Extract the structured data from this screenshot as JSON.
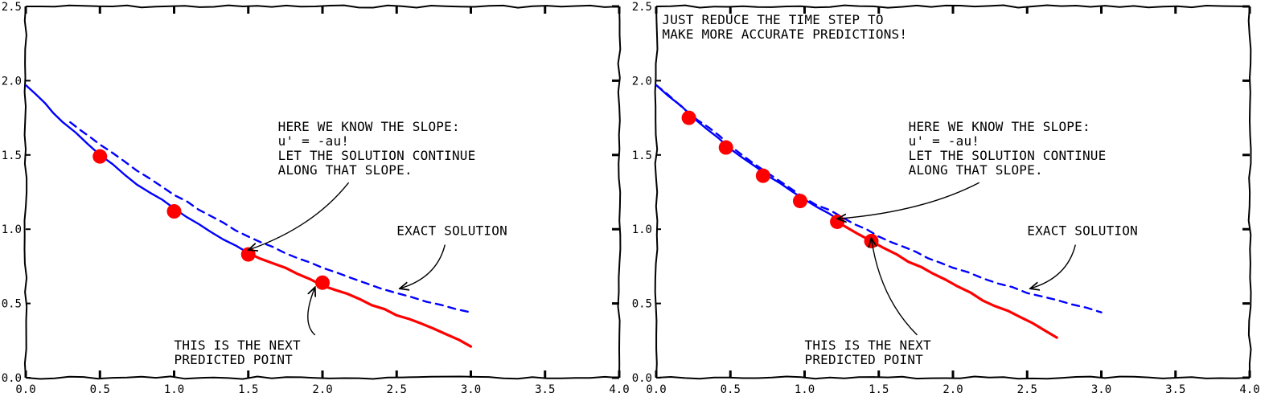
{
  "chart_data": [
    {
      "type": "line",
      "title": "",
      "xlabel": "",
      "ylabel": "",
      "xlim": [
        0.0,
        4.0
      ],
      "ylim": [
        0.0,
        2.5
      ],
      "x_ticks": [
        "0.0",
        "0.5",
        "1.0",
        "1.5",
        "2.0",
        "2.5",
        "3.0",
        "3.5",
        "4.0"
      ],
      "y_ticks": [
        "0.0",
        "0.5",
        "1.0",
        "1.5",
        "2.0",
        "2.5"
      ],
      "grid": false,
      "series": [
        {
          "color": "#0000ff",
          "style": "solid",
          "x": [
            0.0,
            0.25,
            0.5,
            0.75,
            1.0,
            1.25,
            1.5
          ],
          "y": [
            1.97,
            1.72,
            1.5,
            1.3,
            1.14,
            0.98,
            0.84
          ]
        },
        {
          "color": "#ff0000",
          "style": "solid",
          "x": [
            1.5,
            1.75,
            2.0,
            2.25,
            2.5,
            2.75,
            3.0
          ],
          "y": [
            0.84,
            0.74,
            0.62,
            0.53,
            0.42,
            0.33,
            0.21
          ]
        },
        {
          "color": "#0000ff",
          "style": "dashed",
          "x": [
            0.3,
            0.5,
            1.0,
            1.5,
            2.0,
            2.5,
            3.0
          ],
          "y": [
            1.72,
            1.57,
            1.23,
            0.95,
            0.74,
            0.57,
            0.44
          ]
        }
      ],
      "points": {
        "color": "#ff0000",
        "x": [
          0.5,
          1.0,
          1.5,
          2.0
        ],
        "y": [
          1.49,
          1.12,
          0.83,
          0.64
        ]
      },
      "annotations": [
        {
          "lines": [
            "HERE WE KNOW THE SLOPE:",
            "u' = -au!",
            "LET THE SOLUTION CONTINUE",
            "ALONG THAT SLOPE."
          ],
          "at": [
            1.7,
            1.66
          ],
          "arrow_to": [
            1.5,
            0.86
          ]
        },
        {
          "lines": [
            "EXACT SOLUTION"
          ],
          "at": [
            2.5,
            0.96
          ],
          "arrow_to": [
            2.52,
            0.6
          ]
        },
        {
          "lines": [
            "THIS IS THE NEXT",
            "PREDICTED POINT"
          ],
          "at": [
            1.0,
            0.19
          ],
          "arrow_to": [
            1.95,
            0.61
          ]
        }
      ]
    },
    {
      "type": "line",
      "title": "",
      "xlabel": "",
      "ylabel": "",
      "xlim": [
        0.0,
        4.0
      ],
      "ylim": [
        0.0,
        2.5
      ],
      "x_ticks": [
        "0.0",
        "0.5",
        "1.0",
        "1.5",
        "2.0",
        "2.5",
        "3.0",
        "3.5",
        "4.0"
      ],
      "y_ticks": [
        "0.0",
        "0.5",
        "1.0",
        "1.5",
        "2.0",
        "2.5"
      ],
      "grid": false,
      "series": [
        {
          "color": "#0000ff",
          "style": "solid",
          "x": [
            0.0,
            0.25,
            0.5,
            0.75,
            1.0,
            1.25
          ],
          "y": [
            1.97,
            1.75,
            1.54,
            1.36,
            1.2,
            1.05
          ]
        },
        {
          "color": "#ff0000",
          "style": "solid",
          "x": [
            1.2,
            1.45,
            1.7,
            1.95,
            2.2,
            2.45,
            2.7
          ],
          "y": [
            1.06,
            0.92,
            0.78,
            0.66,
            0.52,
            0.41,
            0.27
          ]
        },
        {
          "color": "#0000ff",
          "style": "dashed",
          "x": [
            0.0,
            0.5,
            1.0,
            1.5,
            2.0,
            2.5,
            3.0
          ],
          "y": [
            1.97,
            1.56,
            1.21,
            0.95,
            0.74,
            0.57,
            0.44
          ]
        }
      ],
      "points": {
        "color": "#ff0000",
        "x": [
          0.22,
          0.47,
          0.72,
          0.97,
          1.22,
          1.45
        ],
        "y": [
          1.75,
          1.55,
          1.36,
          1.19,
          1.05,
          0.92
        ]
      },
      "annotations": [
        {
          "lines": [
            "JUST REDUCE THE TIME STEP TO",
            "MAKE MORE ACCURATE PREDICTIONS!"
          ],
          "at": [
            0.04,
            2.38
          ]
        },
        {
          "lines": [
            "HERE WE KNOW THE SLOPE:",
            "u' = -au!",
            "LET THE SOLUTION CONTINUE",
            "ALONG THAT SLOPE."
          ],
          "at": [
            1.7,
            1.66
          ],
          "arrow_to": [
            1.22,
            1.07
          ]
        },
        {
          "lines": [
            "EXACT SOLUTION"
          ],
          "at": [
            2.5,
            0.96
          ],
          "arrow_to": [
            2.52,
            0.6
          ]
        },
        {
          "lines": [
            "THIS IS THE NEXT",
            "PREDICTED POINT"
          ],
          "at": [
            1.0,
            0.19
          ],
          "arrow_to": [
            1.45,
            0.94
          ]
        }
      ]
    }
  ]
}
